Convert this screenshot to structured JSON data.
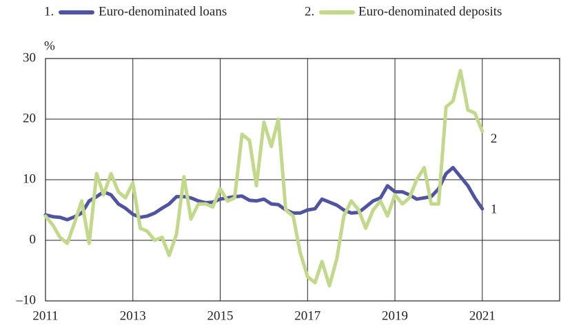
{
  "chart_data": {
    "type": "line",
    "ylabel": "%",
    "x": [
      2011,
      2011.17,
      2011.33,
      2011.5,
      2011.67,
      2011.83,
      2012,
      2012.17,
      2012.33,
      2012.5,
      2012.67,
      2012.83,
      2013,
      2013.17,
      2013.33,
      2013.5,
      2013.67,
      2013.83,
      2014,
      2014.17,
      2014.33,
      2014.5,
      2014.67,
      2014.83,
      2015,
      2015.17,
      2015.33,
      2015.5,
      2015.67,
      2015.83,
      2016,
      2016.17,
      2016.33,
      2016.5,
      2016.67,
      2016.83,
      2017,
      2017.17,
      2017.33,
      2017.5,
      2017.67,
      2017.83,
      2018,
      2018.17,
      2018.33,
      2018.5,
      2018.67,
      2018.83,
      2019,
      2019.17,
      2019.33,
      2019.5,
      2019.67,
      2019.83,
      2020,
      2020.17,
      2020.33,
      2020.5,
      2020.67,
      2020.83,
      2021
    ],
    "series": [
      {
        "name": "Euro-denominated loans",
        "number": "1.",
        "end_label": "1",
        "color": "#4f53a0",
        "values": [
          4.2,
          3.9,
          3.8,
          3.4,
          3.9,
          4.5,
          6.5,
          7.2,
          8,
          7.5,
          6,
          5.3,
          4.3,
          3.8,
          4,
          4.5,
          5.3,
          6,
          7.2,
          7.2,
          7,
          6.5,
          6.2,
          6.3,
          6.8,
          7,
          7.2,
          7.3,
          6.6,
          6.5,
          6.8,
          6,
          5.9,
          5,
          4.5,
          4.5,
          5,
          5.2,
          6.8,
          6.3,
          5.8,
          5,
          4.5,
          4.6,
          5.5,
          6.5,
          7,
          9,
          8,
          8,
          7.5,
          6.8,
          7,
          7.2,
          8.5,
          11,
          12,
          10.5,
          9,
          7,
          5.2
        ]
      },
      {
        "name": "Euro-denominated deposits",
        "number": "2.",
        "end_label": "2",
        "color": "#c2d88a",
        "values": [
          4,
          2.5,
          0.5,
          -0.5,
          3,
          6.5,
          -0.5,
          11,
          7.5,
          11,
          8,
          7,
          9.5,
          2,
          1.5,
          0,
          0.5,
          -2.5,
          1,
          10.5,
          3.5,
          6,
          6,
          5.5,
          8.5,
          6.5,
          7,
          17.5,
          16.5,
          9,
          19.5,
          15.5,
          20,
          5,
          4,
          -2,
          -6,
          -7,
          -3.5,
          -7.5,
          -3,
          4,
          6.5,
          5,
          2,
          5,
          6.5,
          4,
          7.5,
          6,
          7,
          10,
          12,
          6,
          6,
          22,
          23,
          28,
          21.5,
          21,
          18
        ]
      }
    ],
    "xlim": [
      2011,
      2022.77
    ],
    "xticks": [
      2011,
      2013,
      2015,
      2017,
      2019,
      2021
    ],
    "ylim": [
      -10,
      30
    ],
    "yticks": [
      {
        "value": -10,
        "label": "–10"
      },
      0,
      10,
      20,
      30
    ],
    "grid": true
  }
}
